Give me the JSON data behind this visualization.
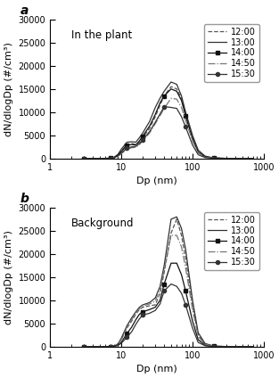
{
  "title_a": "In the plant",
  "title_b": "Background",
  "label_a": "a",
  "label_b": "b",
  "xlabel": "Dp (nm)",
  "ylabel": "dN/dlogDp (#/cm³)",
  "ylim": [
    0,
    30000
  ],
  "yticks": [
    0,
    5000,
    10000,
    15000,
    20000,
    25000,
    30000
  ],
  "times": [
    "12:00",
    "13:00",
    "14:00",
    "14:50",
    "15:30"
  ],
  "dp_values": [
    3.0,
    4.0,
    5.0,
    6.0,
    7.0,
    8.0,
    9.0,
    10.0,
    12.0,
    14.0,
    16.0,
    18.0,
    20.0,
    25.0,
    30.0,
    35.0,
    40.0,
    50.0,
    60.0,
    70.0,
    80.0,
    100.0,
    120.0,
    150.0,
    200.0,
    300.0,
    500.0,
    700.0
  ],
  "curves_a": {
    "12:00": [
      0,
      0,
      0,
      10,
      50,
      200,
      700,
      1600,
      3000,
      3200,
      3000,
      3500,
      4500,
      6500,
      9000,
      11500,
      13500,
      15500,
      15000,
      13000,
      9500,
      4500,
      1500,
      400,
      80,
      8,
      0,
      0
    ],
    "13:00": [
      0,
      0,
      0,
      10,
      60,
      300,
      900,
      2000,
      3500,
      3600,
      3500,
      4500,
      5500,
      8000,
      11000,
      13000,
      14500,
      16500,
      16000,
      13500,
      10000,
      5000,
      1800,
      500,
      100,
      10,
      0,
      0
    ],
    "14:00": [
      0,
      0,
      0,
      10,
      50,
      200,
      700,
      1500,
      2800,
      3000,
      2900,
      3800,
      4800,
      7000,
      9500,
      12000,
      13500,
      15000,
      14500,
      12500,
      9200,
      4200,
      1400,
      350,
      70,
      7,
      0,
      0
    ],
    "14:50": [
      0,
      0,
      0,
      5,
      30,
      150,
      450,
      1000,
      2000,
      2300,
      2400,
      3000,
      3800,
      5500,
      7500,
      9200,
      10800,
      13000,
      12800,
      11000,
      8200,
      3800,
      1200,
      300,
      60,
      5,
      0,
      0
    ],
    "15:30": [
      0,
      0,
      0,
      5,
      35,
      170,
      550,
      1200,
      2200,
      2500,
      2600,
      3200,
      4000,
      5800,
      7800,
      9600,
      11200,
      11000,
      10800,
      9000,
      6800,
      2900,
      800,
      180,
      35,
      3,
      0,
      0
    ]
  },
  "curves_b": {
    "12:00": [
      0,
      0,
      0,
      0,
      0,
      100,
      500,
      1500,
      4000,
      5500,
      7000,
      8000,
      8500,
      8800,
      9000,
      11500,
      16000,
      24500,
      27500,
      24000,
      19000,
      9000,
      2500,
      500,
      80,
      5,
      0,
      0
    ],
    "13:00": [
      0,
      0,
      0,
      0,
      0,
      100,
      600,
      1800,
      4500,
      6200,
      7500,
      8500,
      9000,
      9500,
      10500,
      13000,
      17500,
      27500,
      28000,
      25500,
      21000,
      10000,
      3000,
      650,
      100,
      8,
      0,
      0
    ],
    "14:00": [
      0,
      0,
      0,
      0,
      0,
      80,
      350,
      900,
      2800,
      4200,
      5800,
      7000,
      7500,
      8000,
      8500,
      10000,
      13500,
      18000,
      18000,
      15500,
      12000,
      5500,
      1500,
      280,
      50,
      3,
      0,
      0
    ],
    "14:50": [
      0,
      0,
      0,
      0,
      0,
      100,
      500,
      1500,
      4200,
      5800,
      7200,
      8200,
      8800,
      9200,
      9800,
      12500,
      16500,
      24000,
      24000,
      21500,
      17000,
      8000,
      2200,
      450,
      70,
      4,
      0,
      0
    ],
    "15:30": [
      0,
      0,
      0,
      0,
      0,
      70,
      250,
      700,
      2000,
      3200,
      4800,
      6000,
      6800,
      7200,
      7800,
      9200,
      12000,
      13500,
      13000,
      11500,
      9000,
      4000,
      900,
      180,
      25,
      2,
      0,
      0
    ]
  },
  "background_color": "#ffffff",
  "fontsize_label": 8,
  "fontsize_tick": 7,
  "fontsize_legend": 7,
  "fontsize_panel_label": 10,
  "marker_size": 3
}
